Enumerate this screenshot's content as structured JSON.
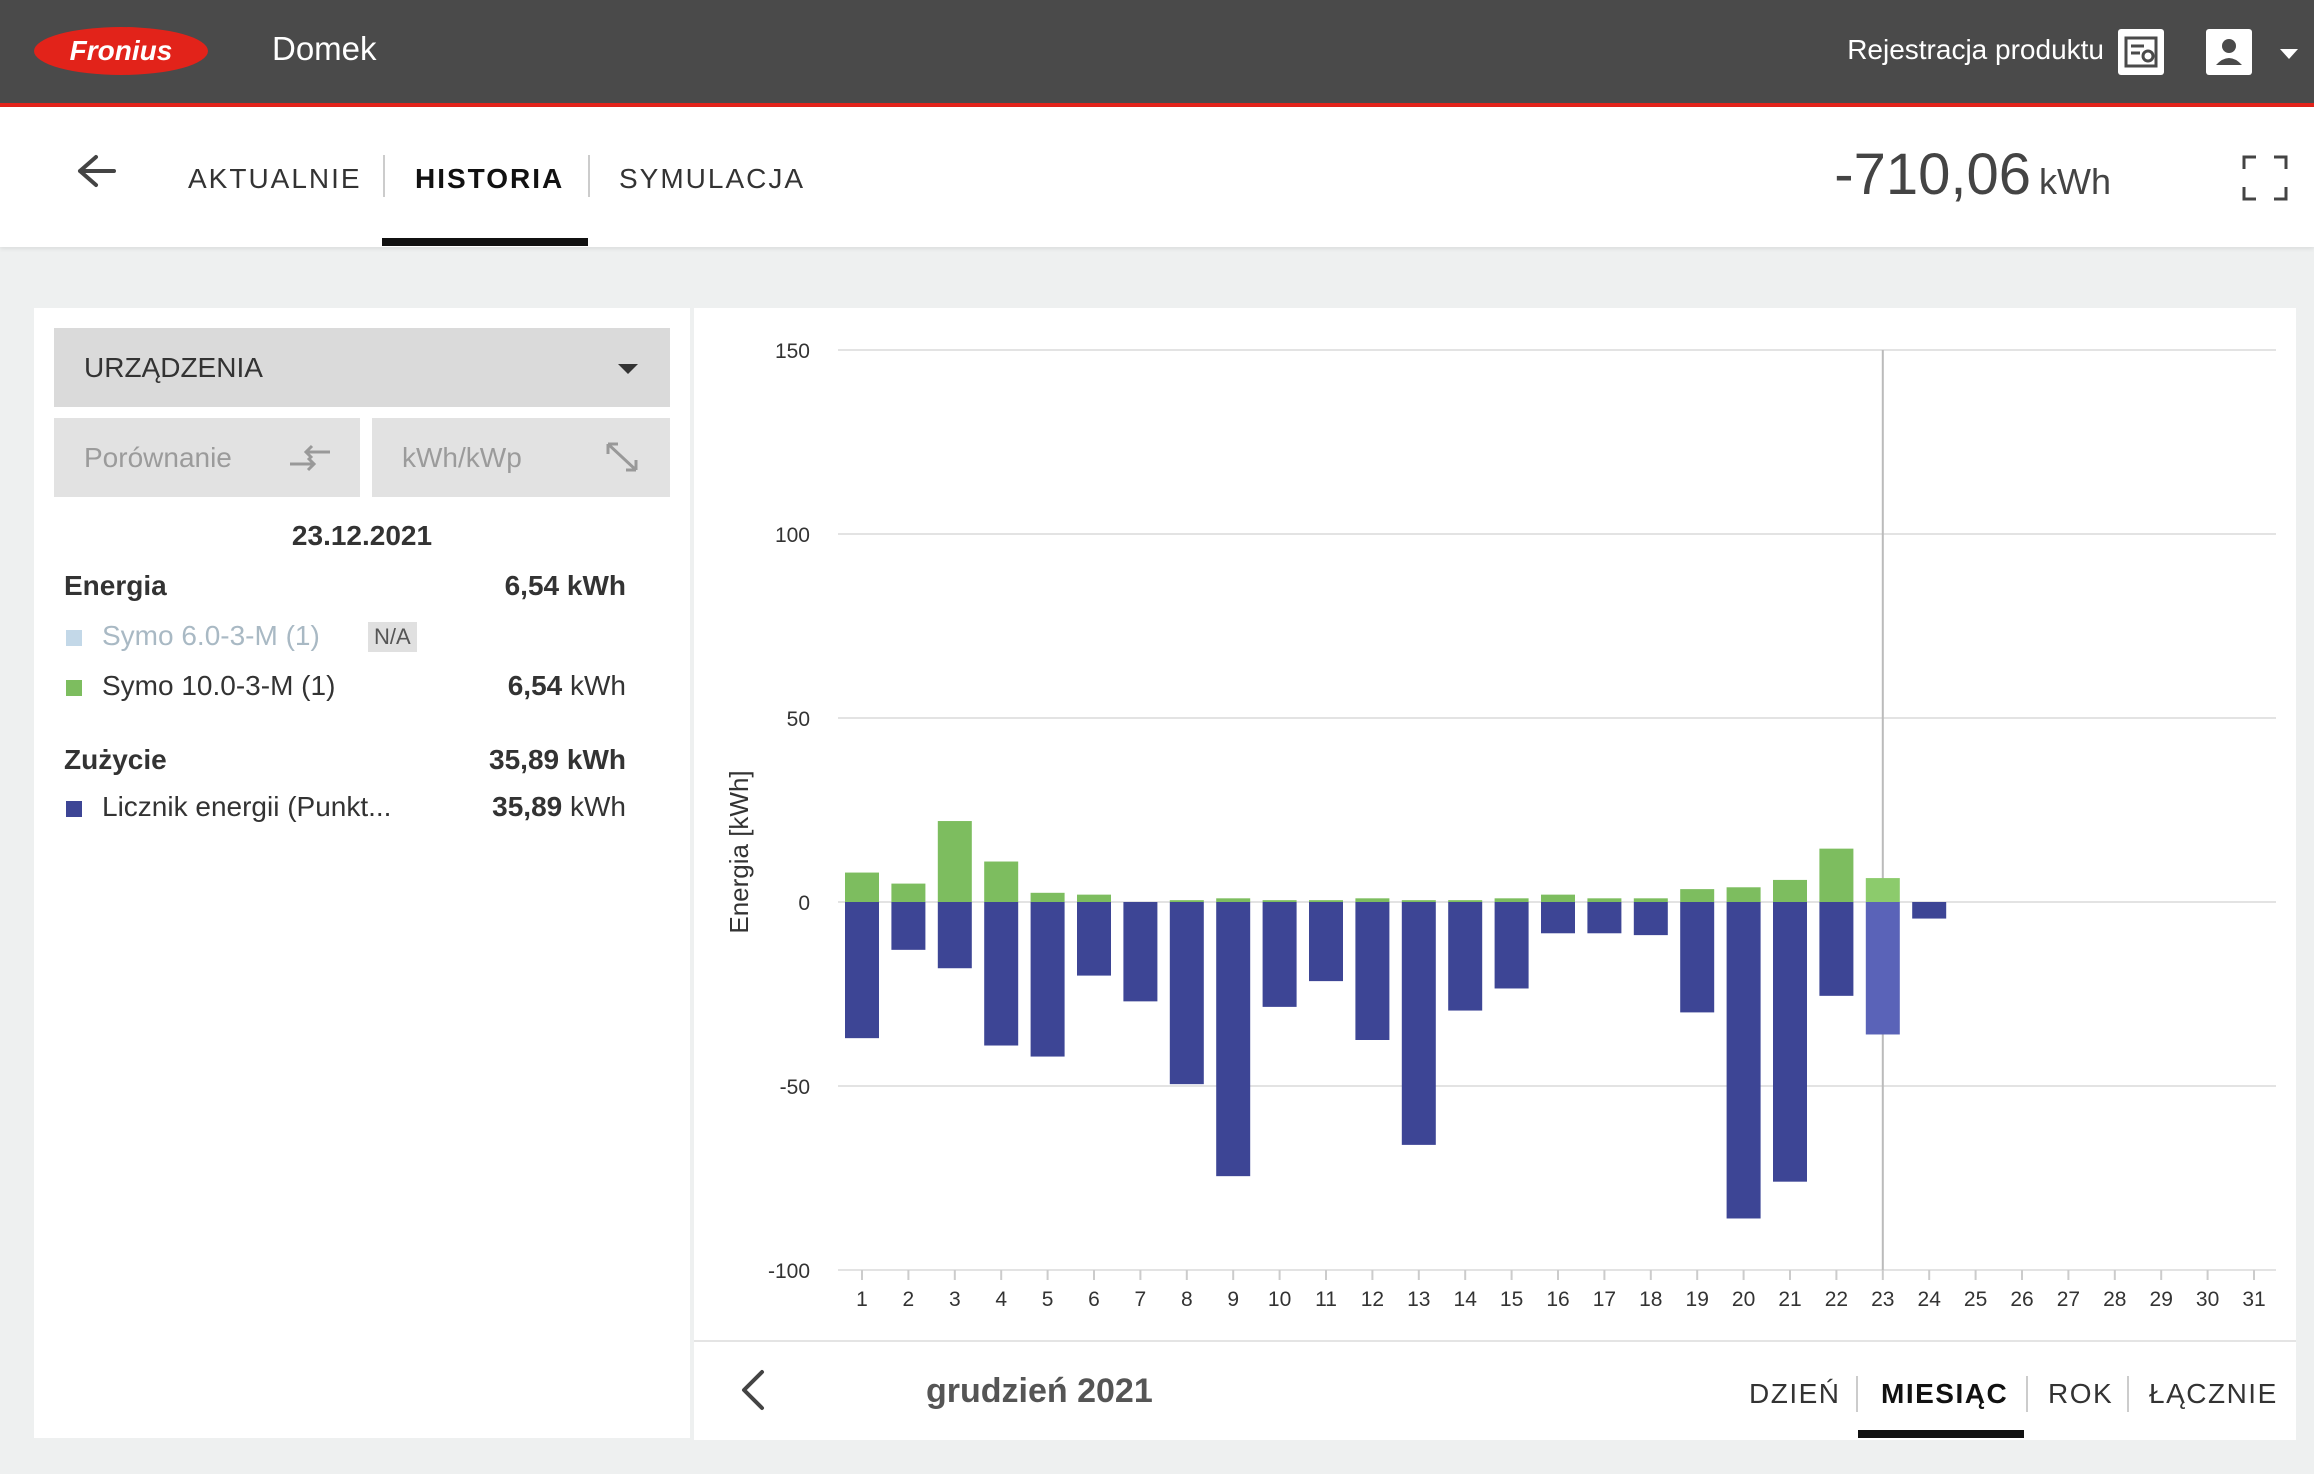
{
  "header": {
    "logo_text": "Fronius",
    "site_name": "Domek",
    "register_label": "Rejestracja produktu"
  },
  "nav": {
    "tabs": [
      {
        "label": "AKTUALNIE"
      },
      {
        "label": "HISTORIA"
      },
      {
        "label": "SYMULACJA"
      }
    ],
    "active_tab": "HISTORIA",
    "total_value": "-710,06",
    "total_unit": "kWh"
  },
  "left": {
    "devices_label": "URZĄDZENIA",
    "compare_label": "Porównanie",
    "kwp_label": "kWh/kWp",
    "date": "23.12.2021",
    "energy": {
      "label": "Energia",
      "value": "6,54",
      "unit": "kWh",
      "items": [
        {
          "name": "Symo 6.0-3-M (1)",
          "badge": "N/A",
          "color": "#c3d8e8"
        },
        {
          "name": "Symo 10.0-3-M (1)",
          "value": "6,54",
          "unit": "kWh",
          "color": "#7dbd5f"
        }
      ]
    },
    "consumption": {
      "label": "Zużycie",
      "value": "35,89",
      "unit": "kWh",
      "items": [
        {
          "name": "Licznik energii (Punkt...",
          "value": "35,89",
          "unit": "kWh",
          "color": "#3d4595"
        }
      ]
    }
  },
  "chart_data": {
    "type": "bar",
    "stacked": true,
    "ylabel": "Energia [kWh]",
    "ylim": [
      -100,
      150
    ],
    "yticks": [
      150,
      100,
      50,
      0,
      -50,
      -100
    ],
    "categories": [
      "1",
      "2",
      "3",
      "4",
      "5",
      "6",
      "7",
      "8",
      "9",
      "10",
      "11",
      "12",
      "13",
      "14",
      "15",
      "16",
      "17",
      "18",
      "19",
      "20",
      "21",
      "22",
      "23",
      "24",
      "25",
      "26",
      "27",
      "28",
      "29",
      "30",
      "31"
    ],
    "highlight_category": "23",
    "series": [
      {
        "color": "#7dbd5f",
        "highlight_color": "#8ccb6c",
        "values": [
          8,
          5,
          22,
          11,
          2.5,
          2,
          0,
          0.5,
          1,
          0.5,
          0.5,
          1,
          0.5,
          0.5,
          1,
          2,
          1,
          1,
          3.5,
          4,
          6,
          14.5,
          6.5,
          null,
          null,
          null,
          null,
          null,
          null,
          null,
          null
        ]
      },
      {
        "color": "#3d4595",
        "highlight_color": "#5a63b8",
        "values": [
          -37,
          -13,
          -18,
          -39,
          -42,
          -20,
          -27,
          -49.5,
          -74.5,
          -28.5,
          -21.5,
          -37.5,
          -66,
          -29.5,
          -23.5,
          -8.5,
          -8.5,
          -9,
          -30,
          -86,
          -76,
          -25.5,
          -36,
          -4.5,
          null,
          null,
          null,
          null,
          null,
          null,
          null
        ]
      }
    ]
  },
  "footer": {
    "period_label": "grudzień 2021",
    "tabs": [
      {
        "label": "DZIEŃ"
      },
      {
        "label": "MIESIĄC"
      },
      {
        "label": "ROK"
      },
      {
        "label": "ŁĄCZNIE"
      }
    ],
    "active_tab": "MIESIĄC"
  }
}
